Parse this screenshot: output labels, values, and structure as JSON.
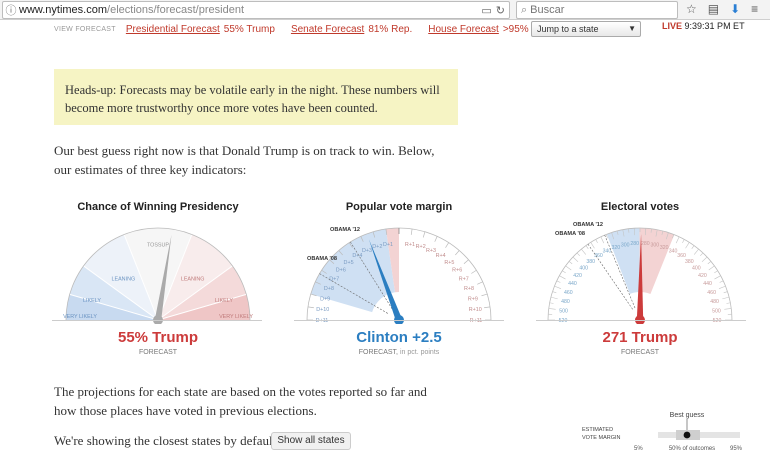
{
  "browser": {
    "url_host": "www.nytimes.com",
    "url_path": "/elections/forecast/president",
    "search_placeholder": "Buscar"
  },
  "subnav": {
    "view_label": "VIEW FORECAST",
    "links": [
      {
        "label": "Presidential Forecast",
        "value": "55% Trump"
      },
      {
        "label": "Senate Forecast",
        "value": "81% Rep."
      },
      {
        "label": "House Forecast",
        "value": ">95% Rep."
      }
    ],
    "jump_label": "Jump to a state",
    "live_label": "LIVE",
    "live_time": "9:39:31 PM ET"
  },
  "alert_text": "Heads-up: Forecasts may be volatile early in the night. These numbers will become more trustworthy once more votes have been counted.",
  "intro_text": "Our best guess right now is that Donald Trump is on track to win. Below, our estimates of three key indicators:",
  "gauges": {
    "chance": {
      "title": "Chance of Winning Presidency",
      "value_text": "55% Trump",
      "sub": "FORECAST",
      "zones": [
        "VERY LIKELY",
        "LIKELY",
        "LEANING",
        "TOSSUP",
        "LEANING",
        "LIKELY",
        "VERY LIKELY"
      ],
      "value": 55
    },
    "popular": {
      "title": "Popular vote margin",
      "value_text": "Clinton +2.5",
      "sub": "FORECAST,",
      "sub_note": "in pct. points",
      "left_ticks": [
        "D+11",
        "D+10",
        "D+9",
        "D+8",
        "D+7",
        "D+6",
        "D+5",
        "D+4",
        "D+3",
        "D+2",
        "D+1"
      ],
      "right_ticks": [
        "R+1",
        "R+2",
        "R+3",
        "R+4",
        "R+5",
        "R+6",
        "R+7",
        "R+8",
        "R+9",
        "R+10",
        "R+11"
      ],
      "markers": [
        "OBAMA '12",
        "OBAMA '08"
      ],
      "value": -2.5
    },
    "electoral": {
      "title": "Electoral votes",
      "value_text": "271 Trump",
      "sub": "FORECAST",
      "left_ticks": [
        "520",
        "500",
        "480",
        "460",
        "440",
        "420",
        "400",
        "380",
        "360",
        "340",
        "320",
        "300",
        "280"
      ],
      "right_ticks": [
        "280",
        "300",
        "320",
        "340",
        "360",
        "380",
        "400",
        "420",
        "440",
        "460",
        "480",
        "500",
        "520"
      ],
      "markers": [
        "OBAMA '12",
        "OBAMA '08"
      ],
      "value": 271
    }
  },
  "projections_text": "The projections for each state are based on the votes reported so far and how those places have voted in previous elections.",
  "closest_text": "We're showing the closest states by default.",
  "show_all_label": "Show all states",
  "legend": {
    "best_guess": "Best guess",
    "label_line1": "ESTIMATED",
    "label_line2": "VOTE MARGIN",
    "pct_low": "5%",
    "pct_mid": "50% of outcomes",
    "pct_high": "95%"
  },
  "colors": {
    "dem": "#3d85c6",
    "rep": "#cc3b3b",
    "highlight": "#f6f4c4"
  }
}
